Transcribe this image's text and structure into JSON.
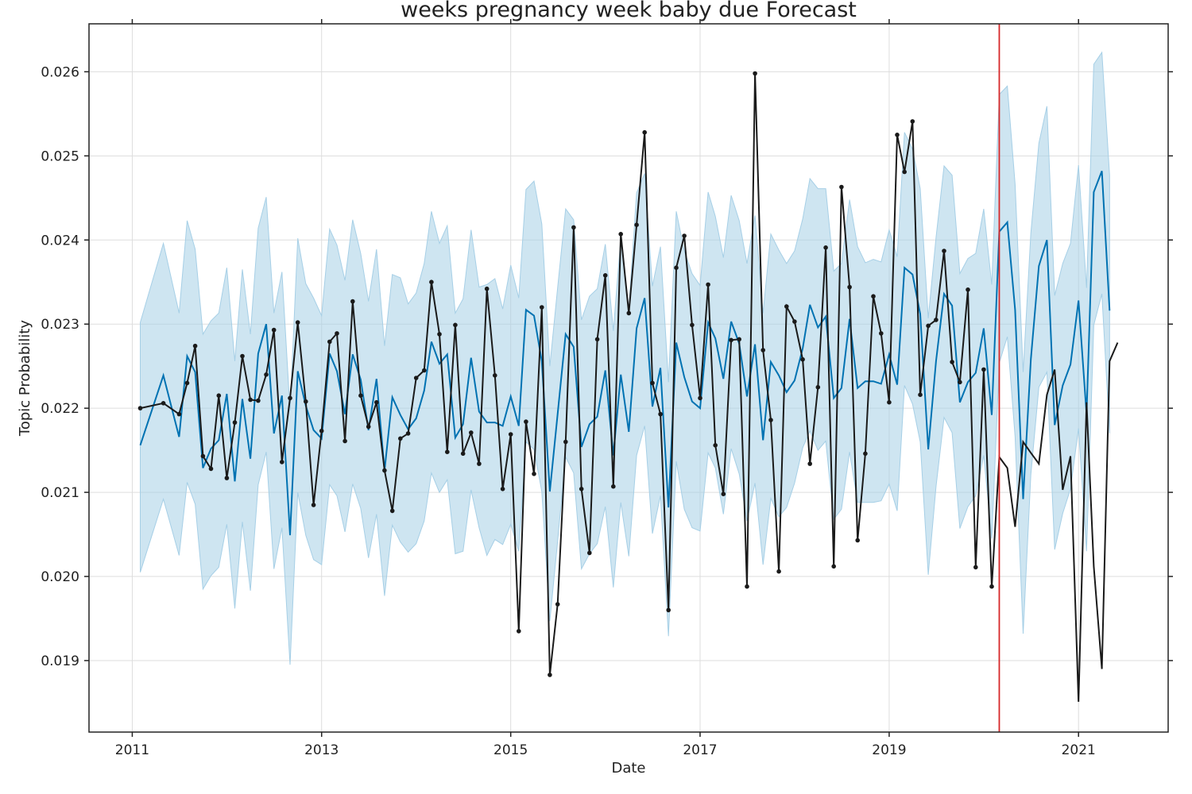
{
  "chart_data": {
    "type": "line",
    "title": "weeks pregnancy week baby due Forecast",
    "xlabel": "Date",
    "ylabel": "Topic Probability",
    "xlim": [
      "2010-07-18",
      "2021-12-13"
    ],
    "ylim": [
      0.01815,
      0.02657
    ],
    "grid": true,
    "x_ticks": [
      "2011",
      "2013",
      "2015",
      "2017",
      "2019",
      "2021"
    ],
    "y_ticks": [
      "0.019",
      "0.020",
      "0.021",
      "0.022",
      "0.023",
      "0.024",
      "0.025",
      "0.026"
    ],
    "changepoint_date": "2020-03-01",
    "colors": {
      "actual": "#1a1a1a",
      "forecast": "#0072b2",
      "interval": "#a6cfe6",
      "changepoint": "#d62728",
      "grid": "#dddddd"
    },
    "series": [
      {
        "name": "actual",
        "x": [
          "2011-02-01",
          "2011-05-01",
          "2011-07-01",
          "2011-08-01",
          "2011-09-01",
          "2011-10-01",
          "2011-11-01",
          "2011-12-01",
          "2012-01-01",
          "2012-02-01",
          "2012-03-01",
          "2012-04-01",
          "2012-05-01",
          "2012-06-01",
          "2012-07-01",
          "2012-08-01",
          "2012-09-01",
          "2012-10-01",
          "2012-11-01",
          "2012-12-01",
          "2013-01-01",
          "2013-02-01",
          "2013-03-01",
          "2013-04-01",
          "2013-05-01",
          "2013-06-01",
          "2013-07-01",
          "2013-08-01",
          "2013-09-01",
          "2013-10-01",
          "2013-11-01",
          "2013-12-01",
          "2014-01-01",
          "2014-02-01",
          "2014-03-01",
          "2014-04-01",
          "2014-05-01",
          "2014-06-01",
          "2014-07-01",
          "2014-08-01",
          "2014-09-01",
          "2014-10-01",
          "2014-11-01",
          "2014-12-01",
          "2015-01-01",
          "2015-02-01",
          "2015-03-01",
          "2015-04-01",
          "2015-05-01",
          "2015-06-01",
          "2015-07-01",
          "2015-08-01",
          "2015-09-01",
          "2015-10-01",
          "2015-11-01",
          "2015-12-01",
          "2016-01-01",
          "2016-02-01",
          "2016-03-01",
          "2016-04-01",
          "2016-05-01",
          "2016-06-01",
          "2016-07-01",
          "2016-08-01",
          "2016-09-01",
          "2016-10-01",
          "2016-11-01",
          "2016-12-01",
          "2017-01-01",
          "2017-02-01",
          "2017-03-01",
          "2017-04-01",
          "2017-05-01",
          "2017-06-01",
          "2017-07-01",
          "2017-08-01",
          "2017-09-01",
          "2017-10-01",
          "2017-11-01",
          "2017-12-01",
          "2018-01-01",
          "2018-02-01",
          "2018-03-01",
          "2018-04-01",
          "2018-05-01",
          "2018-06-01",
          "2018-07-01",
          "2018-08-01",
          "2018-09-01",
          "2018-10-01",
          "2018-11-01",
          "2018-12-01",
          "2019-01-01",
          "2019-02-01",
          "2019-03-01",
          "2019-04-01",
          "2019-05-01",
          "2019-06-01",
          "2019-07-01",
          "2019-08-01",
          "2019-09-01",
          "2019-10-01",
          "2019-11-01",
          "2019-12-01",
          "2020-01-01",
          "2020-02-01"
        ],
        "y": [
          0.022,
          0.02206,
          0.02193,
          0.0223,
          0.02274,
          0.02143,
          0.02128,
          0.02215,
          0.02117,
          0.02183,
          0.02262,
          0.0221,
          0.02209,
          0.0224,
          0.02293,
          0.02136,
          0.02212,
          0.02302,
          0.02208,
          0.02085,
          0.02173,
          0.02279,
          0.02289,
          0.02161,
          0.02327,
          0.02215,
          0.02178,
          0.02207,
          0.02126,
          0.02078,
          0.02164,
          0.0217,
          0.02236,
          0.02245,
          0.0235,
          0.02288,
          0.02148,
          0.02299,
          0.02146,
          0.02171,
          0.02134,
          0.02342,
          0.02239,
          0.02104,
          0.02169,
          0.01935,
          0.02184,
          0.02122,
          0.0232,
          0.01883,
          0.01967,
          0.0216,
          0.02415,
          0.02104,
          0.02028,
          0.02282,
          0.02358,
          0.02107,
          0.02407,
          0.02313,
          0.02418,
          0.02528,
          0.0223,
          0.02193,
          0.0196,
          0.02367,
          0.02405,
          0.02299,
          0.02212,
          0.02347,
          0.02156,
          0.02098,
          0.02281,
          0.02282,
          0.01988,
          0.02598,
          0.02269,
          0.02186,
          0.02006,
          0.02321,
          0.02303,
          0.02258,
          0.02134,
          0.02225,
          0.02391,
          0.02012,
          0.02463,
          0.02344,
          0.02043,
          0.02146,
          0.02333,
          0.02289,
          0.02207,
          0.02525,
          0.02481,
          0.02541,
          0.02216,
          0.02298,
          0.02305,
          0.02387,
          0.02255,
          0.02231,
          0.02341,
          0.02011,
          0.02246,
          0.01988
        ]
      },
      {
        "name": "forecast",
        "x": [
          "2011-02-01",
          "2011-05-01",
          "2011-07-01",
          "2011-08-01",
          "2011-09-01",
          "2011-10-01",
          "2011-11-01",
          "2011-12-01",
          "2012-01-01",
          "2012-02-01",
          "2012-03-01",
          "2012-04-01",
          "2012-05-01",
          "2012-06-01",
          "2012-07-01",
          "2012-08-01",
          "2012-09-01",
          "2012-10-01",
          "2012-11-01",
          "2012-12-01",
          "2013-01-01",
          "2013-02-01",
          "2013-03-01",
          "2013-04-01",
          "2013-05-01",
          "2013-06-01",
          "2013-07-01",
          "2013-08-01",
          "2013-09-01",
          "2013-10-01",
          "2013-11-01",
          "2013-12-01",
          "2014-01-01",
          "2014-02-01",
          "2014-03-01",
          "2014-04-01",
          "2014-05-01",
          "2014-06-01",
          "2014-07-01",
          "2014-08-01",
          "2014-09-01",
          "2014-10-01",
          "2014-11-01",
          "2014-12-01",
          "2015-01-01",
          "2015-02-01",
          "2015-03-01",
          "2015-04-01",
          "2015-05-01",
          "2015-06-01",
          "2015-07-01",
          "2015-08-01",
          "2015-09-01",
          "2015-10-01",
          "2015-11-01",
          "2015-12-01",
          "2016-01-01",
          "2016-02-01",
          "2016-03-01",
          "2016-04-01",
          "2016-05-01",
          "2016-06-01",
          "2016-07-01",
          "2016-08-01",
          "2016-09-01",
          "2016-10-01",
          "2016-11-01",
          "2016-12-01",
          "2017-01-01",
          "2017-02-01",
          "2017-03-01",
          "2017-04-01",
          "2017-05-01",
          "2017-06-01",
          "2017-07-01",
          "2017-08-01",
          "2017-09-01",
          "2017-10-01",
          "2017-11-01",
          "2017-12-01",
          "2018-01-01",
          "2018-02-01",
          "2018-03-01",
          "2018-04-01",
          "2018-05-01",
          "2018-06-01",
          "2018-07-01",
          "2018-08-01",
          "2018-09-01",
          "2018-10-01",
          "2018-11-01",
          "2018-12-01",
          "2019-01-01",
          "2019-02-01",
          "2019-03-01",
          "2019-04-01",
          "2019-05-01",
          "2019-06-01",
          "2019-07-01",
          "2019-08-01",
          "2019-09-01",
          "2019-10-01",
          "2019-11-01",
          "2019-12-01",
          "2020-01-01",
          "2020-02-01",
          "2020-03-01",
          "2020-04-01",
          "2020-05-01",
          "2020-06-01",
          "2020-07-01",
          "2020-08-01",
          "2020-09-01",
          "2020-10-01",
          "2020-11-01",
          "2020-12-01",
          "2021-01-01",
          "2021-02-01",
          "2021-03-01",
          "2021-04-01",
          "2021-05-01"
        ],
        "y": [
          0.02156,
          0.02239,
          0.02166,
          0.02262,
          0.02243,
          0.02129,
          0.02152,
          0.02162,
          0.02217,
          0.02113,
          0.02211,
          0.0214,
          0.02265,
          0.023,
          0.0217,
          0.02215,
          0.02049,
          0.02244,
          0.02203,
          0.02174,
          0.02164,
          0.02265,
          0.02244,
          0.02193,
          0.02264,
          0.02234,
          0.02174,
          0.02235,
          0.02126,
          0.02213,
          0.02192,
          0.02175,
          0.02188,
          0.02221,
          0.02279,
          0.02253,
          0.02264,
          0.02165,
          0.02181,
          0.0226,
          0.02196,
          0.02183,
          0.02183,
          0.02179,
          0.02214,
          0.02179,
          0.02317,
          0.0231,
          0.02256,
          0.02101,
          0.02193,
          0.02288,
          0.02273,
          0.02154,
          0.02181,
          0.0219,
          0.02245,
          0.02144,
          0.0224,
          0.02172,
          0.02295,
          0.02331,
          0.02202,
          0.02248,
          0.02082,
          0.02278,
          0.02237,
          0.02208,
          0.022,
          0.02302,
          0.02283,
          0.02235,
          0.02303,
          0.02277,
          0.02214,
          0.02276,
          0.02162,
          0.02255,
          0.02239,
          0.02219,
          0.02233,
          0.02271,
          0.02323,
          0.02296,
          0.02309,
          0.02212,
          0.02224,
          0.02306,
          0.02224,
          0.02232,
          0.02232,
          0.02229,
          0.02264,
          0.02228,
          0.02367,
          0.02359,
          0.02312,
          0.02151,
          0.02256,
          0.02336,
          0.02322,
          0.02207,
          0.02231,
          0.02242,
          0.02295,
          0.02192,
          0.0241,
          0.02421,
          0.02317,
          0.02092,
          0.02258,
          0.02369,
          0.024,
          0.0218,
          0.02227,
          0.02252,
          0.02328,
          0.02193,
          0.02457,
          0.02482,
          0.02316
        ]
      }
    ],
    "interval": {
      "x": [
        "2011-02-01",
        "2011-05-01",
        "2011-07-01",
        "2011-08-01",
        "2011-09-01",
        "2011-10-01",
        "2011-11-01",
        "2011-12-01",
        "2012-01-01",
        "2012-02-01",
        "2012-03-01",
        "2012-04-01",
        "2012-05-01",
        "2012-06-01",
        "2012-07-01",
        "2012-08-01",
        "2012-09-01",
        "2012-10-01",
        "2012-11-01",
        "2012-12-01",
        "2013-01-01",
        "2013-02-01",
        "2013-03-01",
        "2013-04-01",
        "2013-05-01",
        "2013-06-01",
        "2013-07-01",
        "2013-08-01",
        "2013-09-01",
        "2013-10-01",
        "2013-11-01",
        "2013-12-01",
        "2014-01-01",
        "2014-02-01",
        "2014-03-01",
        "2014-04-01",
        "2014-05-01",
        "2014-06-01",
        "2014-07-01",
        "2014-08-01",
        "2014-09-01",
        "2014-10-01",
        "2014-11-01",
        "2014-12-01",
        "2015-01-01",
        "2015-02-01",
        "2015-03-01",
        "2015-04-01",
        "2015-05-01",
        "2015-06-01",
        "2015-07-01",
        "2015-08-01",
        "2015-09-01",
        "2015-10-01",
        "2015-11-01",
        "2015-12-01",
        "2016-01-01",
        "2016-02-01",
        "2016-03-01",
        "2016-04-01",
        "2016-05-01",
        "2016-06-01",
        "2016-07-01",
        "2016-08-01",
        "2016-09-01",
        "2016-10-01",
        "2016-11-01",
        "2016-12-01",
        "2017-01-01",
        "2017-02-01",
        "2017-03-01",
        "2017-04-01",
        "2017-05-01",
        "2017-06-01",
        "2017-07-01",
        "2017-08-01",
        "2017-09-01",
        "2017-10-01",
        "2017-11-01",
        "2017-12-01",
        "2018-01-01",
        "2018-02-01",
        "2018-03-01",
        "2018-04-01",
        "2018-05-01",
        "2018-06-01",
        "2018-07-01",
        "2018-08-01",
        "2018-09-01",
        "2018-10-01",
        "2018-11-01",
        "2018-12-01",
        "2019-01-01",
        "2019-02-01",
        "2019-03-01",
        "2019-04-01",
        "2019-05-01",
        "2019-06-01",
        "2019-07-01",
        "2019-08-01",
        "2019-09-01",
        "2019-10-01",
        "2019-11-01",
        "2019-12-01",
        "2020-01-01",
        "2020-02-01",
        "2020-03-01",
        "2020-04-01",
        "2020-05-01",
        "2020-06-01",
        "2020-07-01",
        "2020-08-01",
        "2020-09-01",
        "2020-10-01",
        "2020-11-01",
        "2020-12-01",
        "2021-01-01",
        "2021-02-01",
        "2021-03-01",
        "2021-04-01",
        "2021-05-01"
      ],
      "upper": [
        0.02302,
        0.02396,
        0.02313,
        0.02423,
        0.02389,
        0.02288,
        0.02304,
        0.02313,
        0.02367,
        0.02256,
        0.02365,
        0.02288,
        0.02414,
        0.02451,
        0.02313,
        0.02362,
        0.02197,
        0.02402,
        0.02348,
        0.02331,
        0.0231,
        0.02413,
        0.02394,
        0.02352,
        0.02424,
        0.02384,
        0.02327,
        0.02389,
        0.02274,
        0.02359,
        0.02355,
        0.02324,
        0.02337,
        0.02372,
        0.02434,
        0.02396,
        0.02417,
        0.02313,
        0.0233,
        0.02412,
        0.02344,
        0.02347,
        0.02354,
        0.02318,
        0.0237,
        0.02331,
        0.0246,
        0.0247,
        0.02419,
        0.0225,
        0.02343,
        0.02437,
        0.02424,
        0.02305,
        0.02333,
        0.02342,
        0.02395,
        0.02292,
        0.02402,
        0.02318,
        0.02456,
        0.02479,
        0.02345,
        0.02392,
        0.02231,
        0.02434,
        0.02387,
        0.0236,
        0.02346,
        0.02457,
        0.02428,
        0.02379,
        0.02453,
        0.02423,
        0.02372,
        0.02429,
        0.02313,
        0.02407,
        0.02388,
        0.02372,
        0.02387,
        0.02425,
        0.02473,
        0.02461,
        0.02461,
        0.02363,
        0.02372,
        0.02448,
        0.02392,
        0.02373,
        0.02377,
        0.02374,
        0.02412,
        0.0238,
        0.02528,
        0.02508,
        0.02461,
        0.02307,
        0.02403,
        0.02488,
        0.02477,
        0.0236,
        0.02378,
        0.02384,
        0.02437,
        0.02347,
        0.02573,
        0.02583,
        0.02466,
        0.02243,
        0.02408,
        0.02515,
        0.02559,
        0.02334,
        0.02372,
        0.02396,
        0.02489,
        0.02343,
        0.02609,
        0.02623,
        0.02477
      ],
      "lower": [
        0.02005,
        0.02092,
        0.02025,
        0.02112,
        0.02086,
        0.01985,
        0.02001,
        0.02011,
        0.02062,
        0.01962,
        0.02065,
        0.01983,
        0.02109,
        0.02148,
        0.02009,
        0.02058,
        0.01895,
        0.021,
        0.02049,
        0.0202,
        0.02014,
        0.02109,
        0.02096,
        0.02053,
        0.0211,
        0.02081,
        0.02022,
        0.02074,
        0.01977,
        0.02061,
        0.02041,
        0.02029,
        0.02039,
        0.02066,
        0.02123,
        0.021,
        0.02115,
        0.02027,
        0.0203,
        0.02103,
        0.02058,
        0.02025,
        0.02044,
        0.02038,
        0.02062,
        0.0203,
        0.0216,
        0.02151,
        0.02101,
        0.01947,
        0.02042,
        0.02142,
        0.02123,
        0.02009,
        0.02027,
        0.02039,
        0.02083,
        0.01987,
        0.02088,
        0.02024,
        0.02144,
        0.02179,
        0.02051,
        0.02096,
        0.01929,
        0.02137,
        0.0208,
        0.02058,
        0.02054,
        0.02147,
        0.02129,
        0.02074,
        0.02152,
        0.02122,
        0.02066,
        0.02111,
        0.02014,
        0.02093,
        0.02071,
        0.02082,
        0.02111,
        0.02153,
        0.02173,
        0.0215,
        0.02161,
        0.02068,
        0.0208,
        0.02148,
        0.02088,
        0.02088,
        0.02088,
        0.0209,
        0.0211,
        0.02078,
        0.02227,
        0.02205,
        0.0216,
        0.02002,
        0.02107,
        0.02189,
        0.02171,
        0.02057,
        0.02083,
        0.02096,
        0.02144,
        0.02045,
        0.02254,
        0.02285,
        0.02166,
        0.01932,
        0.02121,
        0.02225,
        0.02243,
        0.02032,
        0.02075,
        0.02104,
        0.02176,
        0.0203,
        0.02299,
        0.02336,
        0.0217
      ]
    },
    "forecast_tail": {
      "x": [
        "2020-03-01",
        "2020-04-01",
        "2020-05-01",
        "2020-06-01",
        "2020-07-01",
        "2020-08-01",
        "2020-09-01",
        "2020-10-01",
        "2020-11-01",
        "2020-12-01",
        "2021-01-01",
        "2021-02-01",
        "2021-03-01",
        "2021-04-01",
        "2021-05-01",
        "2021-06-01"
      ],
      "y": [
        0.02142,
        0.02129,
        0.02059,
        0.0216,
        0.02147,
        0.02134,
        0.02216,
        0.02246,
        0.02103,
        0.02143,
        0.01851,
        0.02207,
        0.02012,
        0.0189,
        0.02256,
        0.02278
      ]
    }
  }
}
